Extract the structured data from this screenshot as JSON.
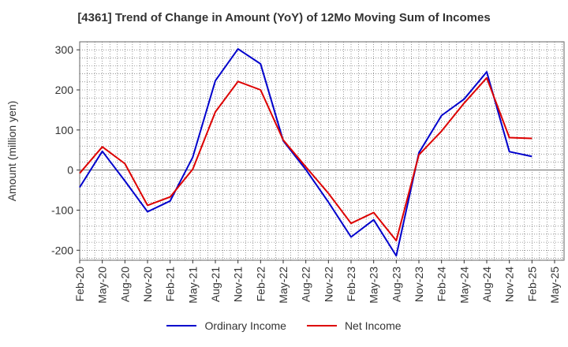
{
  "chart_data": {
    "type": "line",
    "title": "[4361]  Trend of Change in Amount (YoY) of 12Mo Moving Sum of Incomes",
    "ylabel": "Amount (million yen)",
    "xlabel": "",
    "ylim": [
      -225,
      320
    ],
    "yticks": [
      -200,
      -100,
      0,
      100,
      200,
      300
    ],
    "grid": true,
    "legend_position": "bottom",
    "categories": [
      "Feb-20",
      "May-20",
      "Aug-20",
      "Nov-20",
      "Feb-21",
      "May-21",
      "Aug-21",
      "Nov-21",
      "Feb-22",
      "May-22",
      "Aug-22",
      "Nov-22",
      "Feb-23",
      "May-23",
      "Aug-23",
      "Nov-23",
      "Feb-24",
      "May-24",
      "Aug-24",
      "Nov-24",
      "Feb-25",
      "May-25"
    ],
    "series": [
      {
        "name": "Ordinary Income",
        "color": "#0000cc",
        "values": [
          -43,
          47,
          -27,
          -104,
          -77,
          32,
          223,
          302,
          265,
          73,
          1,
          -80,
          -167,
          -124,
          -214,
          43,
          136,
          177,
          245,
          46,
          34,
          null
        ]
      },
      {
        "name": "Net Income",
        "color": "#dd0000",
        "values": [
          -8,
          58,
          16,
          -88,
          -67,
          2,
          145,
          221,
          200,
          75,
          8,
          -58,
          -133,
          -106,
          -176,
          38,
          97,
          167,
          230,
          81,
          79,
          null
        ]
      }
    ]
  }
}
